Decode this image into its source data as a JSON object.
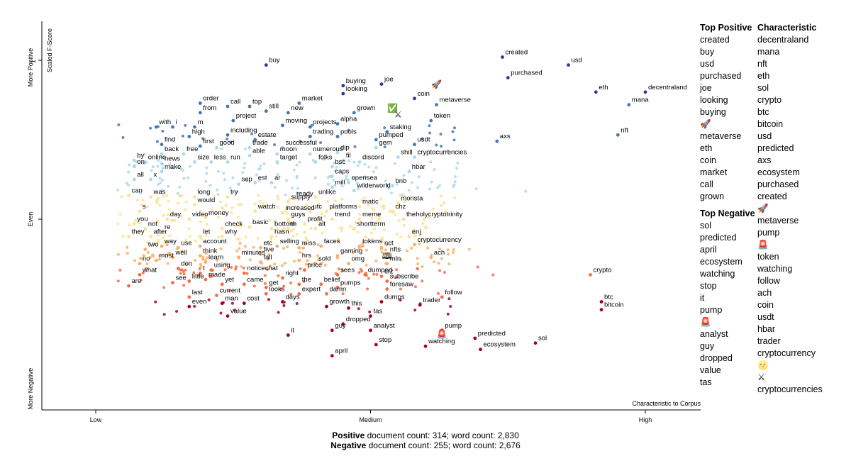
{
  "chart_data": {
    "type": "scatter",
    "title": "",
    "xlabel": "Characteristic to Corpus",
    "ylabel": "Scaled F-Score",
    "x_ticks": [
      "Low",
      "Medium",
      "High"
    ],
    "y_ticks": [
      "1",
      "Even"
    ],
    "y_side_labels": {
      "top": "More Positive",
      "middle": "Even",
      "bottom": "More Negative"
    },
    "xlim": [
      0,
      1
    ],
    "ylim": [
      -1,
      1
    ],
    "grid": false,
    "color_scale": "red (negative) to blue (positive)",
    "labeled_points": [
      {
        "term": "buy",
        "x": 0.31,
        "y": 0.97
      },
      {
        "term": "created",
        "x": 0.74,
        "y": 1.02
      },
      {
        "term": "purchased",
        "x": 0.75,
        "y": 0.89
      },
      {
        "term": "usd",
        "x": 0.86,
        "y": 0.97
      },
      {
        "term": "eth",
        "x": 0.91,
        "y": 0.8
      },
      {
        "term": "decentraland",
        "x": 1.0,
        "y": 0.8
      },
      {
        "term": "mana",
        "x": 0.97,
        "y": 0.72
      },
      {
        "term": "nft",
        "x": 0.95,
        "y": 0.53
      },
      {
        "term": "buying",
        "x": 0.45,
        "y": 0.84
      },
      {
        "term": "joe",
        "x": 0.52,
        "y": 0.85
      },
      {
        "term": "looking",
        "x": 0.45,
        "y": 0.79
      },
      {
        "term": "coin",
        "x": 0.58,
        "y": 0.76
      },
      {
        "term": "metaverse",
        "x": 0.62,
        "y": 0.72
      },
      {
        "term": "grown",
        "x": 0.47,
        "y": 0.67
      },
      {
        "term": "token",
        "x": 0.61,
        "y": 0.62
      },
      {
        "term": "order",
        "x": 0.19,
        "y": 0.73
      },
      {
        "term": "call",
        "x": 0.24,
        "y": 0.71
      },
      {
        "term": "top",
        "x": 0.28,
        "y": 0.71
      },
      {
        "term": "market",
        "x": 0.37,
        "y": 0.73
      },
      {
        "term": "from",
        "x": 0.19,
        "y": 0.67
      },
      {
        "term": "still",
        "x": 0.31,
        "y": 0.68
      },
      {
        "term": "new",
        "x": 0.35,
        "y": 0.67
      },
      {
        "term": "project",
        "x": 0.25,
        "y": 0.62
      },
      {
        "term": "alpha",
        "x": 0.44,
        "y": 0.6
      },
      {
        "term": "with",
        "x": 0.11,
        "y": 0.58
      },
      {
        "term": "i",
        "x": 0.14,
        "y": 0.58
      },
      {
        "term": "m",
        "x": 0.18,
        "y": 0.58
      },
      {
        "term": "moving",
        "x": 0.34,
        "y": 0.59
      },
      {
        "term": "projects",
        "x": 0.39,
        "y": 0.58
      },
      {
        "term": "staking",
        "x": 0.53,
        "y": 0.55
      },
      {
        "term": "high",
        "x": 0.17,
        "y": 0.52
      },
      {
        "term": "including",
        "x": 0.24,
        "y": 0.53
      },
      {
        "term": "trading",
        "x": 0.39,
        "y": 0.52
      },
      {
        "term": "pools",
        "x": 0.44,
        "y": 0.52
      },
      {
        "term": "estate",
        "x": 0.29,
        "y": 0.5
      },
      {
        "term": "pumped",
        "x": 0.51,
        "y": 0.5
      },
      {
        "term": "usdt",
        "x": 0.58,
        "y": 0.47
      },
      {
        "term": "axs",
        "x": 0.73,
        "y": 0.49
      },
      {
        "term": "find",
        "x": 0.12,
        "y": 0.47
      },
      {
        "term": "first",
        "x": 0.19,
        "y": 0.46
      },
      {
        "term": "good",
        "x": 0.22,
        "y": 0.45
      },
      {
        "term": "trade",
        "x": 0.28,
        "y": 0.45
      },
      {
        "term": "successful",
        "x": 0.34,
        "y": 0.45
      },
      {
        "term": "gem",
        "x": 0.51,
        "y": 0.45
      },
      {
        "term": "back",
        "x": 0.12,
        "y": 0.41
      },
      {
        "term": "free",
        "x": 0.16,
        "y": 0.41
      },
      {
        "term": "able",
        "x": 0.28,
        "y": 0.4
      },
      {
        "term": "moon",
        "x": 0.33,
        "y": 0.41
      },
      {
        "term": "numerous",
        "x": 0.39,
        "y": 0.41
      },
      {
        "term": "dip",
        "x": 0.44,
        "y": 0.42
      },
      {
        "term": "shill",
        "x": 0.55,
        "y": 0.39
      },
      {
        "term": "cryptocurrencies",
        "x": 0.58,
        "y": 0.39
      },
      {
        "term": "by",
        "x": 0.07,
        "y": 0.37
      },
      {
        "term": "online",
        "x": 0.09,
        "y": 0.36
      },
      {
        "term": "news",
        "x": 0.12,
        "y": 0.35
      },
      {
        "term": "size",
        "x": 0.18,
        "y": 0.36
      },
      {
        "term": "less",
        "x": 0.21,
        "y": 0.36
      },
      {
        "term": "run",
        "x": 0.24,
        "y": 0.36
      },
      {
        "term": "target",
        "x": 0.33,
        "y": 0.36
      },
      {
        "term": "folks",
        "x": 0.4,
        "y": 0.36
      },
      {
        "term": "fil",
        "x": 0.45,
        "y": 0.37
      },
      {
        "term": "discord",
        "x": 0.48,
        "y": 0.36
      },
      {
        "term": "on",
        "x": 0.07,
        "y": 0.33
      },
      {
        "term": "make",
        "x": 0.12,
        "y": 0.3
      },
      {
        "term": "bsc",
        "x": 0.43,
        "y": 0.33
      },
      {
        "term": "hbar",
        "x": 0.57,
        "y": 0.3
      },
      {
        "term": "all",
        "x": 0.07,
        "y": 0.25
      },
      {
        "term": "x",
        "x": 0.1,
        "y": 0.25
      },
      {
        "term": "caps",
        "x": 0.43,
        "y": 0.27
      },
      {
        "term": "sep",
        "x": 0.26,
        "y": 0.22
      },
      {
        "term": "est",
        "x": 0.29,
        "y": 0.23
      },
      {
        "term": "ar",
        "x": 0.32,
        "y": 0.23
      },
      {
        "term": "opensea",
        "x": 0.46,
        "y": 0.23
      },
      {
        "term": "bnb",
        "x": 0.54,
        "y": 0.21
      },
      {
        "term": "mill",
        "x": 0.43,
        "y": 0.2
      },
      {
        "term": "wilderworld",
        "x": 0.47,
        "y": 0.18
      },
      {
        "term": "can",
        "x": 0.06,
        "y": 0.15
      },
      {
        "term": "was",
        "x": 0.1,
        "y": 0.14
      },
      {
        "term": "long",
        "x": 0.18,
        "y": 0.14
      },
      {
        "term": "try",
        "x": 0.24,
        "y": 0.14
      },
      {
        "term": "ready",
        "x": 0.36,
        "y": 0.13
      },
      {
        "term": "unlike",
        "x": 0.4,
        "y": 0.14
      },
      {
        "term": "monsta",
        "x": 0.55,
        "y": 0.1
      },
      {
        "term": "would",
        "x": 0.18,
        "y": 0.09
      },
      {
        "term": "supply",
        "x": 0.35,
        "y": 0.11
      },
      {
        "term": "matic",
        "x": 0.48,
        "y": 0.08
      },
      {
        "term": "s",
        "x": 0.08,
        "y": 0.05
      },
      {
        "term": "watch",
        "x": 0.29,
        "y": 0.05
      },
      {
        "term": "increased",
        "x": 0.34,
        "y": 0.04
      },
      {
        "term": "utc",
        "x": 0.39,
        "y": 0.05
      },
      {
        "term": "platforms",
        "x": 0.42,
        "y": 0.05
      },
      {
        "term": "chz",
        "x": 0.54,
        "y": 0.05
      },
      {
        "term": "day",
        "x": 0.13,
        "y": 0.0
      },
      {
        "term": "video",
        "x": 0.17,
        "y": 0.0
      },
      {
        "term": "money",
        "x": 0.2,
        "y": 0.01
      },
      {
        "term": "guys",
        "x": 0.35,
        "y": 0.0
      },
      {
        "term": "trend",
        "x": 0.43,
        "y": 0.0
      },
      {
        "term": "meme",
        "x": 0.48,
        "y": 0.0
      },
      {
        "term": "theholycryptotrinity",
        "x": 0.56,
        "y": 0.0
      },
      {
        "term": "you",
        "x": 0.07,
        "y": -0.03
      },
      {
        "term": "profit",
        "x": 0.38,
        "y": -0.03
      },
      {
        "term": "basic",
        "x": 0.28,
        "y": -0.05
      },
      {
        "term": "not",
        "x": 0.09,
        "y": -0.06
      },
      {
        "term": "check",
        "x": 0.23,
        "y": -0.06
      },
      {
        "term": "bottom",
        "x": 0.32,
        "y": -0.06
      },
      {
        "term": "th",
        "x": 0.35,
        "y": -0.06
      },
      {
        "term": "alt",
        "x": 0.4,
        "y": -0.06
      },
      {
        "term": "shortterm",
        "x": 0.47,
        "y": -0.06
      },
      {
        "term": "re",
        "x": 0.12,
        "y": -0.08
      },
      {
        "term": "enj",
        "x": 0.57,
        "y": -0.11
      },
      {
        "term": "they",
        "x": 0.06,
        "y": -0.11
      },
      {
        "term": "after",
        "x": 0.1,
        "y": -0.11
      },
      {
        "term": "let",
        "x": 0.19,
        "y": -0.11
      },
      {
        "term": "why",
        "x": 0.23,
        "y": -0.11
      },
      {
        "term": "hasn",
        "x": 0.32,
        "y": -0.11
      },
      {
        "term": "cryptocurrency",
        "x": 0.58,
        "y": -0.16
      },
      {
        "term": "way",
        "x": 0.12,
        "y": -0.17
      },
      {
        "term": "account",
        "x": 0.19,
        "y": -0.17
      },
      {
        "term": "use",
        "x": 0.15,
        "y": -0.18
      },
      {
        "term": "etc",
        "x": 0.3,
        "y": -0.18
      },
      {
        "term": "selling",
        "x": 0.33,
        "y": -0.17
      },
      {
        "term": "miss",
        "x": 0.37,
        "y": -0.18
      },
      {
        "term": "faces",
        "x": 0.41,
        "y": -0.17
      },
      {
        "term": "tokens",
        "x": 0.48,
        "y": -0.17
      },
      {
        "term": "nct",
        "x": 0.52,
        "y": -0.18
      },
      {
        "term": "two",
        "x": 0.09,
        "y": -0.19
      },
      {
        "term": "five",
        "x": 0.3,
        "y": -0.22
      },
      {
        "term": "nfts",
        "x": 0.53,
        "y": -0.22
      },
      {
        "term": "think",
        "x": 0.19,
        "y": -0.23
      },
      {
        "term": "minutes",
        "x": 0.26,
        "y": -0.24
      },
      {
        "term": "gaming",
        "x": 0.44,
        "y": -0.23
      },
      {
        "term": "ach",
        "x": 0.61,
        "y": -0.24
      },
      {
        "term": "well",
        "x": 0.14,
        "y": -0.24
      },
      {
        "term": "most",
        "x": 0.11,
        "y": -0.26
      },
      {
        "term": "hrs",
        "x": 0.37,
        "y": -0.26
      },
      {
        "term": "learn",
        "x": 0.2,
        "y": -0.27
      },
      {
        "term": "fall",
        "x": 0.3,
        "y": -0.27
      },
      {
        "term": "sold",
        "x": 0.4,
        "y": -0.28
      },
      {
        "term": "omg",
        "x": 0.46,
        "y": -0.28
      },
      {
        "term": "mln",
        "x": 0.53,
        "y": -0.28
      },
      {
        "term": "no",
        "x": 0.08,
        "y": -0.28
      },
      {
        "term": "don",
        "x": 0.15,
        "y": -0.31
      },
      {
        "term": "using",
        "x": 0.21,
        "y": -0.32
      },
      {
        "term": "price",
        "x": 0.38,
        "y": -0.32
      },
      {
        "term": "noticechat",
        "x": 0.27,
        "y": -0.34
      },
      {
        "term": "t",
        "x": 0.19,
        "y": -0.34
      },
      {
        "term": "what",
        "x": 0.08,
        "y": -0.35
      },
      {
        "term": "sees",
        "x": 0.44,
        "y": -0.35
      },
      {
        "term": "dumped",
        "x": 0.49,
        "y": -0.35
      },
      {
        "term": "crypto",
        "x": 0.9,
        "y": -0.35
      },
      {
        "term": "crz",
        "x": 0.52,
        "y": -0.36
      },
      {
        "term": "right",
        "x": 0.34,
        "y": -0.37
      },
      {
        "term": "little",
        "x": 0.17,
        "y": -0.39
      },
      {
        "term": "made",
        "x": 0.2,
        "y": -0.38
      },
      {
        "term": "subscribe",
        "x": 0.53,
        "y": -0.39
      },
      {
        "term": "see",
        "x": 0.14,
        "y": -0.4
      },
      {
        "term": "yet",
        "x": 0.23,
        "y": -0.41
      },
      {
        "term": "came",
        "x": 0.27,
        "y": -0.41
      },
      {
        "term": "the",
        "x": 0.37,
        "y": -0.41
      },
      {
        "term": "belief",
        "x": 0.41,
        "y": -0.41
      },
      {
        "term": "are",
        "x": 0.06,
        "y": -0.42
      },
      {
        "term": "get",
        "x": 0.31,
        "y": -0.43
      },
      {
        "term": "pumps",
        "x": 0.44,
        "y": -0.43
      },
      {
        "term": "foresaw",
        "x": 0.53,
        "y": -0.44
      },
      {
        "term": "current",
        "x": 0.22,
        "y": -0.48
      },
      {
        "term": "looks",
        "x": 0.31,
        "y": -0.47
      },
      {
        "term": "expert",
        "x": 0.37,
        "y": -0.47
      },
      {
        "term": "damn",
        "x": 0.42,
        "y": -0.47
      },
      {
        "term": "last",
        "x": 0.17,
        "y": -0.49
      },
      {
        "term": "follow",
        "x": 0.63,
        "y": -0.49
      },
      {
        "term": "days",
        "x": 0.34,
        "y": -0.52
      },
      {
        "term": "dumps",
        "x": 0.52,
        "y": -0.52
      },
      {
        "term": "btc",
        "x": 0.92,
        "y": -0.52
      },
      {
        "term": "man",
        "x": 0.23,
        "y": -0.53
      },
      {
        "term": "cost",
        "x": 0.27,
        "y": -0.53
      },
      {
        "term": "trader",
        "x": 0.59,
        "y": -0.54
      },
      {
        "term": "even",
        "x": 0.17,
        "y": -0.55
      },
      {
        "term": "growth",
        "x": 0.42,
        "y": -0.55
      },
      {
        "term": "this",
        "x": 0.46,
        "y": -0.56
      },
      {
        "term": "bitcoin",
        "x": 0.92,
        "y": -0.57
      },
      {
        "term": "value",
        "x": 0.24,
        "y": -0.61
      },
      {
        "term": "tas",
        "x": 0.5,
        "y": -0.61
      },
      {
        "term": "dropped",
        "x": 0.45,
        "y": -0.66
      },
      {
        "term": "guy",
        "x": 0.43,
        "y": -0.7
      },
      {
        "term": "analyst",
        "x": 0.5,
        "y": -0.7
      },
      {
        "term": "pump",
        "x": 0.63,
        "y": -0.7
      },
      {
        "term": "it",
        "x": 0.35,
        "y": -0.73
      },
      {
        "term": "predicted",
        "x": 0.69,
        "y": -0.75
      },
      {
        "term": "stop",
        "x": 0.51,
        "y": -0.79
      },
      {
        "term": "watching",
        "x": 0.6,
        "y": -0.8
      },
      {
        "term": "ecosystem",
        "x": 0.7,
        "y": -0.82
      },
      {
        "term": "sol",
        "x": 0.8,
        "y": -0.78
      },
      {
        "term": "april",
        "x": 0.43,
        "y": -0.86
      }
    ],
    "emoji_points": [
      {
        "emoji": "🚀",
        "x": 0.62,
        "y": 0.83
      },
      {
        "emoji": "✅",
        "x": 0.54,
        "y": 0.68
      },
      {
        "emoji": "⚔",
        "x": 0.55,
        "y": 0.64
      },
      {
        "emoji": "🚨",
        "x": 0.63,
        "y": -0.74
      },
      {
        "emoji": "🕮",
        "x": 0.53,
        "y": -0.25
      }
    ]
  },
  "top_positive": {
    "header": "Top Positive",
    "terms": [
      "created",
      "buy",
      "usd",
      "purchased",
      "joe",
      "looking",
      "buying",
      "🚀",
      "metaverse",
      "eth",
      "coin",
      "market",
      "call",
      "grown"
    ]
  },
  "top_negative": {
    "header": "Top Negative",
    "terms": [
      "sol",
      "predicted",
      "april",
      "ecosystem",
      "watching",
      "stop",
      "it",
      "pump",
      "🚨",
      "analyst",
      "guy",
      "dropped",
      "value",
      "tas"
    ]
  },
  "characteristic": {
    "header": "Characteristic",
    "terms": [
      "decentraland",
      "mana",
      "nft",
      "eth",
      "sol",
      "crypto",
      "btc",
      "bitcoin",
      "usd",
      "predicted",
      "axs",
      "ecosystem",
      "purchased",
      "created",
      "🚀",
      "metaverse",
      "pump",
      "🚨",
      "token",
      "watching",
      "follow",
      "ach",
      "coin",
      "usdt",
      "hbar",
      "trader",
      "cryptocurrency",
      "🌝",
      "⚔",
      "cryptocurrencies"
    ]
  },
  "counts": {
    "positive_label": "Positive",
    "positive_text": "document count: 314; word count: 2,830",
    "negative_label": "Negative",
    "negative_text": "document count: 255; word count: 2,676"
  },
  "colors": {
    "positive_strong": "#313695",
    "positive_mid": "#4575b4",
    "positive_light": "#abd9e9",
    "neutral": "#fee090",
    "negative_light": "#fdae61",
    "negative_mid": "#f46d43",
    "negative_strong": "#a50026"
  }
}
